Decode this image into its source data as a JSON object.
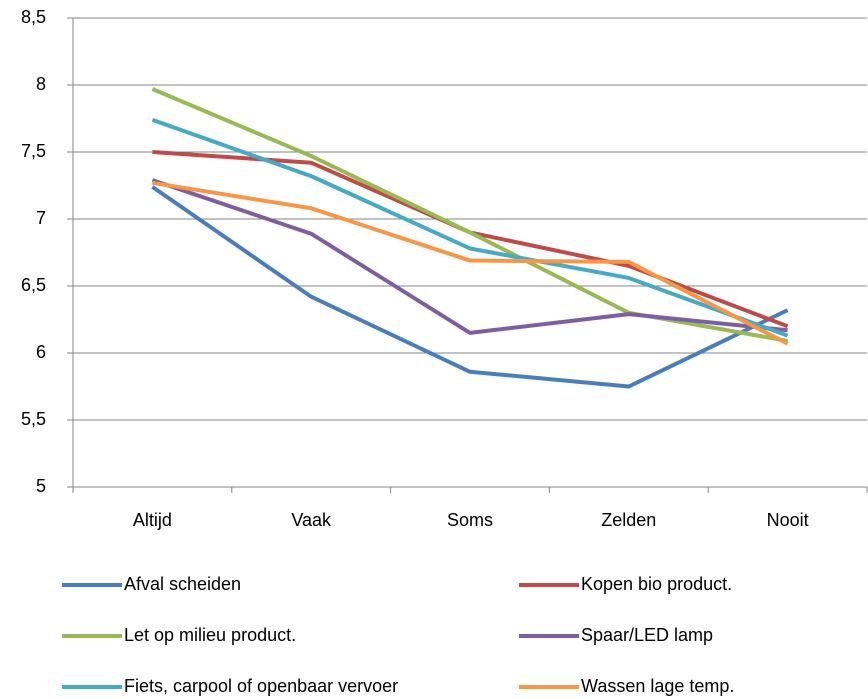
{
  "chart_data": {
    "type": "line",
    "categories": [
      "Altijd",
      "Vaak",
      "Soms",
      "Zelden",
      "Nooit"
    ],
    "series": [
      {
        "name": "Afval scheiden",
        "color": "#4a7ebb",
        "values": [
          7.24,
          6.42,
          5.86,
          5.75,
          6.32
        ]
      },
      {
        "name": "Kopen bio product.",
        "color": "#be4b48",
        "values": [
          7.5,
          7.42,
          6.9,
          6.65,
          6.2
        ]
      },
      {
        "name": "Let op milieu product.",
        "color": "#98b954",
        "values": [
          7.97,
          7.47,
          6.9,
          6.3,
          6.09
        ]
      },
      {
        "name": "Spaar/LED lamp",
        "color": "#7d5fa0",
        "values": [
          7.29,
          6.89,
          6.15,
          6.29,
          6.17
        ]
      },
      {
        "name": "Fiets, carpool of openbaar vervoer",
        "color": "#46aac5",
        "values": [
          7.74,
          7.32,
          6.78,
          6.56,
          6.13
        ]
      },
      {
        "name": "Wassen lage temp.",
        "color": "#f79646",
        "values": [
          7.27,
          7.08,
          6.69,
          6.68,
          6.07
        ]
      }
    ],
    "ylim": [
      5,
      8.5
    ],
    "yticks": [
      5,
      {
        "value": 5.5,
        "label": "5,5"
      },
      6,
      {
        "value": 6.5,
        "label": "6,5"
      },
      7,
      {
        "value": 7.5,
        "label": "7,5"
      },
      8,
      {
        "value": 8.5,
        "label": "8,5"
      }
    ],
    "grid": true,
    "legend": "bottom"
  }
}
